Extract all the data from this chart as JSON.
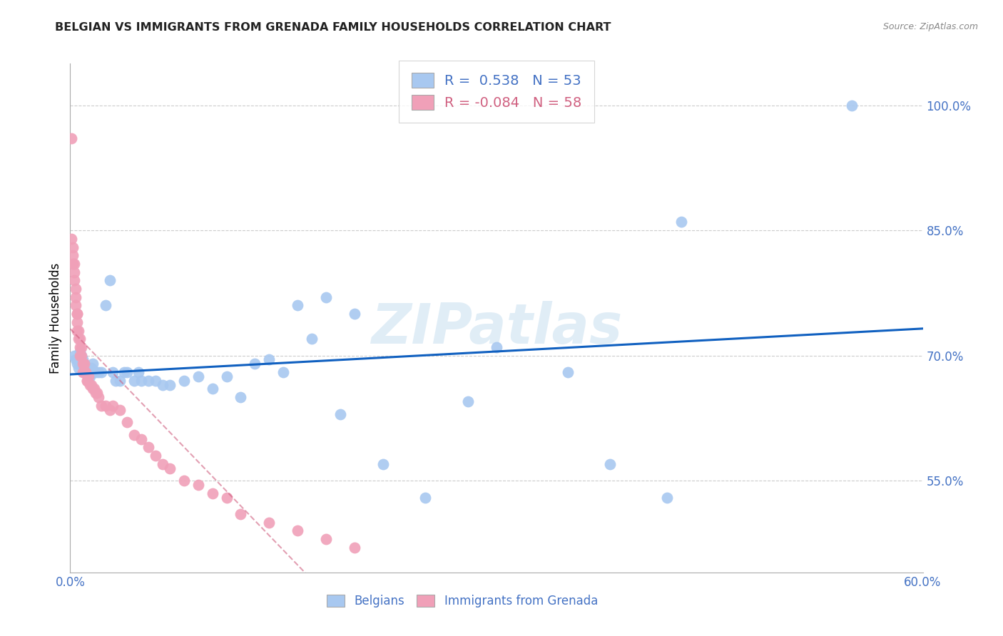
{
  "title": "BELGIAN VS IMMIGRANTS FROM GRENADA FAMILY HOUSEHOLDS CORRELATION CHART",
  "source": "Source: ZipAtlas.com",
  "ylabel": "Family Households",
  "watermark": "ZIPatlas",
  "x_min": 0.0,
  "x_max": 0.6,
  "y_min": 0.44,
  "y_max": 1.05,
  "y_ticks": [
    0.55,
    0.7,
    0.85,
    1.0
  ],
  "y_tick_labels": [
    "55.0%",
    "70.0%",
    "85.0%",
    "100.0%"
  ],
  "x_ticks": [
    0.0,
    0.1,
    0.2,
    0.3,
    0.4,
    0.5,
    0.6
  ],
  "x_tick_labels": [
    "0.0%",
    "",
    "",
    "",
    "",
    "",
    "60.0%"
  ],
  "legend_r_blue": " 0.538",
  "legend_n_blue": "53",
  "legend_r_pink": "-0.084",
  "legend_n_pink": "58",
  "blue_color": "#A8C8F0",
  "pink_color": "#F0A0B8",
  "line_blue": "#1060C0",
  "line_pink": "#D06080",
  "title_color": "#222222",
  "tick_color": "#4472C4",
  "grid_color": "#CCCCCC",
  "belgians_x": [
    0.003,
    0.004,
    0.005,
    0.006,
    0.007,
    0.008,
    0.009,
    0.01,
    0.011,
    0.012,
    0.013,
    0.014,
    0.015,
    0.016,
    0.018,
    0.02,
    0.022,
    0.025,
    0.028,
    0.03,
    0.032,
    0.035,
    0.038,
    0.04,
    0.045,
    0.048,
    0.05,
    0.055,
    0.06,
    0.065,
    0.07,
    0.08,
    0.09,
    0.1,
    0.11,
    0.12,
    0.13,
    0.14,
    0.15,
    0.16,
    0.17,
    0.18,
    0.19,
    0.2,
    0.22,
    0.25,
    0.28,
    0.3,
    0.35,
    0.38,
    0.42,
    0.43,
    0.55
  ],
  "belgians_y": [
    0.7,
    0.695,
    0.69,
    0.685,
    0.705,
    0.7,
    0.695,
    0.69,
    0.68,
    0.685,
    0.68,
    0.675,
    0.685,
    0.69,
    0.68,
    0.68,
    0.68,
    0.76,
    0.79,
    0.68,
    0.67,
    0.67,
    0.68,
    0.68,
    0.67,
    0.68,
    0.67,
    0.67,
    0.67,
    0.665,
    0.665,
    0.67,
    0.675,
    0.66,
    0.675,
    0.65,
    0.69,
    0.695,
    0.68,
    0.76,
    0.72,
    0.77,
    0.63,
    0.75,
    0.57,
    0.53,
    0.645,
    0.71,
    0.68,
    0.57,
    0.53,
    0.86,
    1.0
  ],
  "grenada_x": [
    0.001,
    0.001,
    0.002,
    0.002,
    0.002,
    0.003,
    0.003,
    0.003,
    0.004,
    0.004,
    0.004,
    0.005,
    0.005,
    0.005,
    0.005,
    0.006,
    0.006,
    0.007,
    0.007,
    0.007,
    0.008,
    0.008,
    0.009,
    0.009,
    0.01,
    0.01,
    0.011,
    0.012,
    0.012,
    0.013,
    0.014,
    0.015,
    0.016,
    0.017,
    0.018,
    0.019,
    0.02,
    0.022,
    0.025,
    0.028,
    0.03,
    0.035,
    0.04,
    0.045,
    0.05,
    0.055,
    0.06,
    0.065,
    0.07,
    0.08,
    0.09,
    0.1,
    0.11,
    0.12,
    0.14,
    0.16,
    0.18,
    0.2
  ],
  "grenada_y": [
    0.96,
    0.84,
    0.83,
    0.82,
    0.81,
    0.81,
    0.8,
    0.79,
    0.78,
    0.77,
    0.76,
    0.75,
    0.75,
    0.74,
    0.73,
    0.73,
    0.72,
    0.72,
    0.71,
    0.7,
    0.71,
    0.7,
    0.69,
    0.68,
    0.69,
    0.68,
    0.68,
    0.67,
    0.67,
    0.675,
    0.665,
    0.665,
    0.66,
    0.66,
    0.655,
    0.655,
    0.65,
    0.64,
    0.64,
    0.635,
    0.64,
    0.635,
    0.62,
    0.605,
    0.6,
    0.59,
    0.58,
    0.57,
    0.565,
    0.55,
    0.545,
    0.535,
    0.53,
    0.51,
    0.5,
    0.49,
    0.48,
    0.47
  ]
}
